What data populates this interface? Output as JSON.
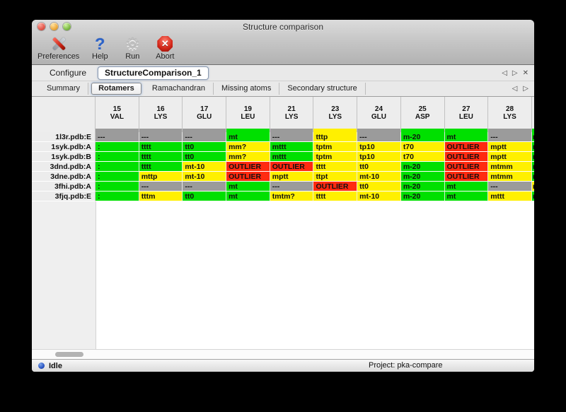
{
  "window": {
    "title": "Structure comparison"
  },
  "titlebar_buttons": [
    {
      "name": "close-button",
      "color": "red"
    },
    {
      "name": "minimize-button",
      "color": "yel"
    },
    {
      "name": "zoom-button",
      "color": "grn"
    }
  ],
  "toolbar": {
    "items": [
      {
        "label": "Preferences",
        "icon": "tools"
      },
      {
        "label": "Help",
        "icon": "help"
      },
      {
        "label": "Run",
        "icon": "gear"
      },
      {
        "label": "Abort",
        "icon": "abort"
      }
    ]
  },
  "icons": {
    "help_glyph": "?",
    "gear_glyph": "⚙",
    "abort_glyph": "✕",
    "prev": "◁",
    "next": "▷",
    "close": "✕"
  },
  "configure": {
    "label": "Configure",
    "value": "StructureComparison_1"
  },
  "tabs": [
    {
      "label": "Summary",
      "selected": false
    },
    {
      "label": "Rotamers",
      "selected": true
    },
    {
      "label": "Ramachandran",
      "selected": false
    },
    {
      "label": "Missing atoms",
      "selected": false
    },
    {
      "label": "Secondary structure",
      "selected": false
    }
  ],
  "colors": {
    "green": "#00e000",
    "yellow": "#fff000",
    "red": "#ff2a10",
    "gray": "#9b9b9b"
  },
  "table": {
    "columns": [
      {
        "num": "15",
        "res": "VAL",
        "strip": "gray"
      },
      {
        "num": "16",
        "res": "LYS",
        "strip": "gray"
      },
      {
        "num": "17",
        "res": "GLU",
        "strip": "gray"
      },
      {
        "num": "19",
        "res": "LEU",
        "strip": "green"
      },
      {
        "num": "21",
        "res": "LYS",
        "strip": "gray"
      },
      {
        "num": "23",
        "res": "LYS",
        "strip": "yellow"
      },
      {
        "num": "24",
        "res": "GLU",
        "strip": "gray"
      },
      {
        "num": "25",
        "res": "ASP",
        "strip": "green"
      },
      {
        "num": "27",
        "res": "LEU",
        "strip": "green"
      },
      {
        "num": "28",
        "res": "LYS",
        "strip": "gray"
      }
    ],
    "partial_column": {
      "strip": "green"
    },
    "rows": [
      {
        "label": "1l3r.pdb:E",
        "cells": [
          {
            "t": "---",
            "c": "gray"
          },
          {
            "t": "---",
            "c": "gray"
          },
          {
            "t": "---",
            "c": "gray"
          },
          {
            "t": "mt",
            "c": "green"
          },
          {
            "t": "---",
            "c": "gray"
          },
          {
            "t": "tttp",
            "c": "yellow"
          },
          {
            "t": "---",
            "c": "gray"
          },
          {
            "t": "m-20",
            "c": "green"
          },
          {
            "t": "mt",
            "c": "green"
          },
          {
            "t": "---",
            "c": "gray"
          }
        ],
        "partial": {
          "t": "m",
          "c": "green"
        }
      },
      {
        "label": "1syk.pdb:A",
        "cells": [
          {
            "t": ":",
            "c": "green"
          },
          {
            "t": "tttt",
            "c": "green"
          },
          {
            "t": "tt0",
            "c": "green"
          },
          {
            "t": "mm?",
            "c": "yellow"
          },
          {
            "t": "mttt",
            "c": "green"
          },
          {
            "t": "tptm",
            "c": "yellow"
          },
          {
            "t": "tp10",
            "c": "yellow"
          },
          {
            "t": "t70",
            "c": "yellow"
          },
          {
            "t": "OUTLIER",
            "c": "red"
          },
          {
            "t": "mptt",
            "c": "yellow"
          }
        ],
        "partial": {
          "t": "m",
          "c": "green"
        }
      },
      {
        "label": "1syk.pdb:B",
        "cells": [
          {
            "t": ":",
            "c": "green"
          },
          {
            "t": "tttt",
            "c": "green"
          },
          {
            "t": "tt0",
            "c": "green"
          },
          {
            "t": "mm?",
            "c": "yellow"
          },
          {
            "t": "mttt",
            "c": "green"
          },
          {
            "t": "tptm",
            "c": "yellow"
          },
          {
            "t": "tp10",
            "c": "yellow"
          },
          {
            "t": "t70",
            "c": "yellow"
          },
          {
            "t": "OUTLIER",
            "c": "red"
          },
          {
            "t": "mptt",
            "c": "yellow"
          }
        ],
        "partial": {
          "t": "m",
          "c": "green"
        }
      },
      {
        "label": "3dnd.pdb:A",
        "cells": [
          {
            "t": ":",
            "c": "green"
          },
          {
            "t": "tttt",
            "c": "green"
          },
          {
            "t": "mt-10",
            "c": "yellow"
          },
          {
            "t": "OUTLIER",
            "c": "red"
          },
          {
            "t": "OUTLIER",
            "c": "red"
          },
          {
            "t": "tttt",
            "c": "yellow"
          },
          {
            "t": "tt0",
            "c": "yellow"
          },
          {
            "t": "m-20",
            "c": "green"
          },
          {
            "t": "OUTLIER",
            "c": "red"
          },
          {
            "t": "mtmm",
            "c": "yellow"
          }
        ],
        "partial": {
          "t": "m",
          "c": "green"
        }
      },
      {
        "label": "3dne.pdb:A",
        "cells": [
          {
            "t": ":",
            "c": "green"
          },
          {
            "t": "mttp",
            "c": "yellow"
          },
          {
            "t": "mt-10",
            "c": "yellow"
          },
          {
            "t": "OUTLIER",
            "c": "red"
          },
          {
            "t": "mptt",
            "c": "yellow"
          },
          {
            "t": "ttpt",
            "c": "yellow"
          },
          {
            "t": "mt-10",
            "c": "yellow"
          },
          {
            "t": "m-20",
            "c": "green"
          },
          {
            "t": "OUTLIER",
            "c": "red"
          },
          {
            "t": "mtmm",
            "c": "yellow"
          }
        ],
        "partial": {
          "t": "m",
          "c": "green"
        }
      },
      {
        "label": "3fhi.pdb:A",
        "cells": [
          {
            "t": ":",
            "c": "green"
          },
          {
            "t": "---",
            "c": "gray"
          },
          {
            "t": "---",
            "c": "gray"
          },
          {
            "t": "mt",
            "c": "green"
          },
          {
            "t": "---",
            "c": "gray"
          },
          {
            "t": "OUTLIER",
            "c": "red"
          },
          {
            "t": "tt0",
            "c": "yellow"
          },
          {
            "t": "m-20",
            "c": "green"
          },
          {
            "t": "mt",
            "c": "green"
          },
          {
            "t": "---",
            "c": "gray"
          }
        ],
        "partial": {
          "t": "m",
          "c": "yellow"
        }
      },
      {
        "label": "3fjq.pdb:E",
        "cells": [
          {
            "t": ":",
            "c": "green"
          },
          {
            "t": "tttm",
            "c": "yellow"
          },
          {
            "t": "tt0",
            "c": "green"
          },
          {
            "t": "mt",
            "c": "green"
          },
          {
            "t": "tmtm?",
            "c": "yellow"
          },
          {
            "t": "tttt",
            "c": "yellow"
          },
          {
            "t": "mt-10",
            "c": "yellow"
          },
          {
            "t": "m-20",
            "c": "green"
          },
          {
            "t": "mt",
            "c": "green"
          },
          {
            "t": "mttt",
            "c": "yellow"
          }
        ],
        "partial": {
          "t": "m",
          "c": "green"
        }
      }
    ]
  },
  "statusbar": {
    "status": "Idle",
    "project": "Project: pka-compare"
  }
}
